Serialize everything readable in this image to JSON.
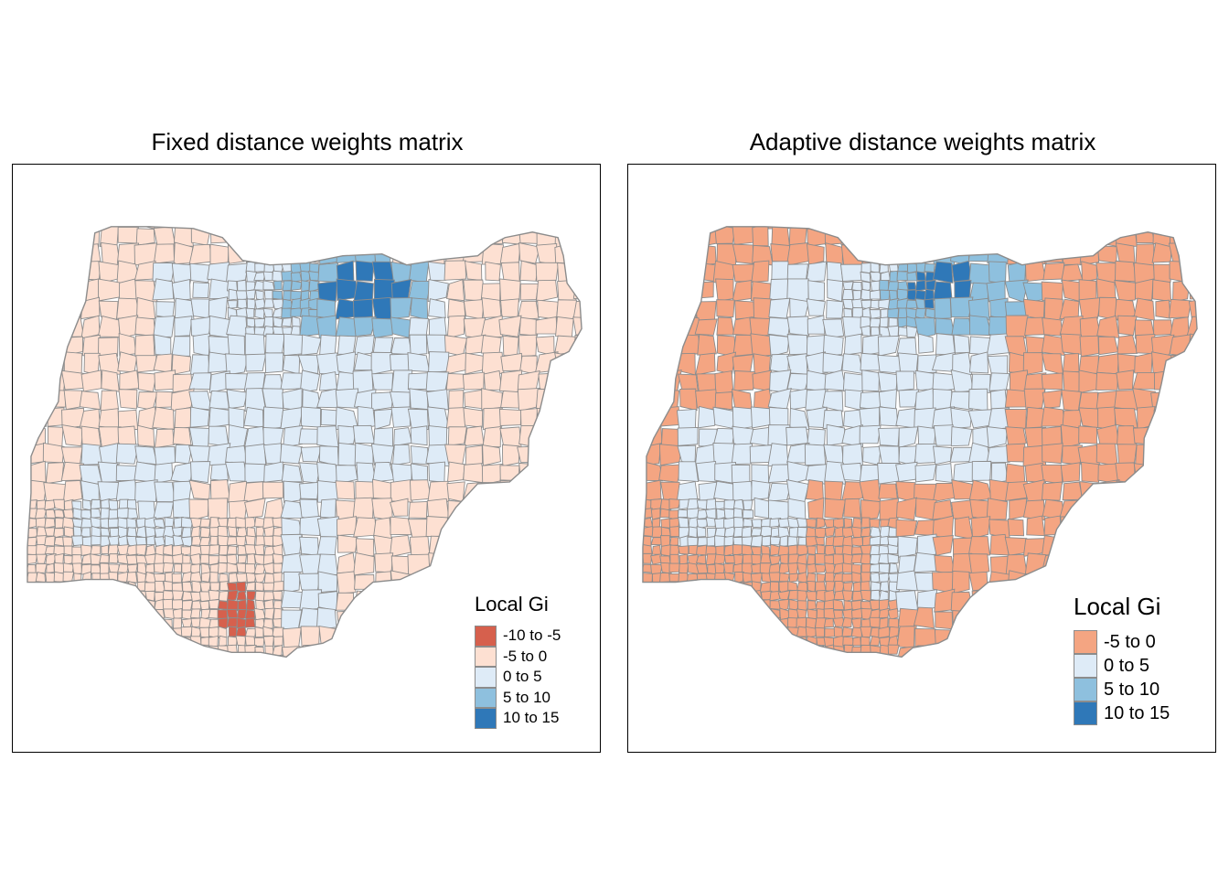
{
  "panels": [
    {
      "title": "Fixed distance weights matrix",
      "legend": {
        "title": "Local Gi",
        "items": [
          {
            "label": "-10 to -5",
            "color": "#d6604d"
          },
          {
            "label": "-5 to 0",
            "color": "#fde0d2"
          },
          {
            "label": "0 to 5",
            "color": "#deebf7"
          },
          {
            "label": "5 to 10",
            "color": "#8ec0de"
          },
          {
            "label": "10 to 15",
            "color": "#2f78b8"
          }
        ]
      }
    },
    {
      "title": "Adaptive distance weights matrix",
      "legend": {
        "title": "Local Gi",
        "items": [
          {
            "label": "-5 to 0",
            "color": "#f4a582"
          },
          {
            "label": "0 to 5",
            "color": "#deebf7"
          },
          {
            "label": "5 to 10",
            "color": "#8ec0de"
          },
          {
            "label": "10 to 15",
            "color": "#2f78b8"
          }
        ]
      }
    }
  ],
  "border_color": "#8c8c8c"
}
